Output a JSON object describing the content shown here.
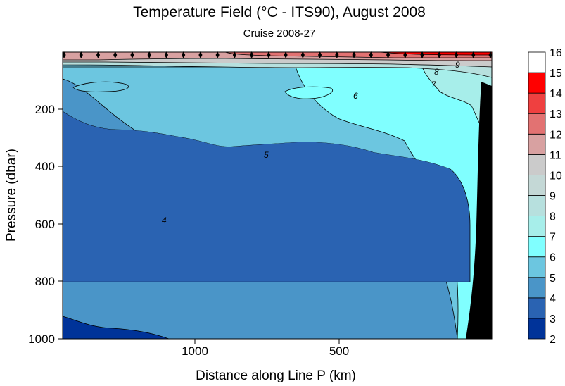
{
  "chart_data": {
    "type": "contour",
    "title": "Temperature Field  (°C - ITS90),  August 2008",
    "subtitle": "Cruise 2008-27",
    "xlabel": "Distance along Line P  (km)",
    "ylabel": "Pressure  (dbar)",
    "x_axis": {
      "reversed": true,
      "range": [
        1445,
        0
      ],
      "ticks": [
        1000,
        500
      ]
    },
    "y_axis": {
      "reversed": true,
      "range": [
        0,
        1000
      ],
      "ticks": [
        200,
        400,
        600,
        800,
        1000
      ]
    },
    "x_tick_labels": [
      "1000",
      "500"
    ],
    "y_tick_labels": [
      "200",
      "400",
      "600",
      "800",
      "1000"
    ],
    "contour_labels": [
      "4",
      "5",
      "6",
      "7",
      "8",
      "9"
    ],
    "colorbar": {
      "levels": [
        2,
        3,
        4,
        5,
        6,
        7,
        8,
        9,
        10,
        11,
        12,
        13,
        14,
        15,
        16
      ],
      "labels": [
        "2",
        "3",
        "4",
        "5",
        "6",
        "7",
        "8",
        "9",
        "10",
        "11",
        "12",
        "13",
        "14",
        "15",
        "16"
      ],
      "colors": [
        "#003399",
        "#2a63b2",
        "#4a95c8",
        "#6cc6e0",
        "#80ffff",
        "#a7eeea",
        "#b7e0de",
        "#c4d8d6",
        "#cbcbcb",
        "#d8a1a1",
        "#e27272",
        "#ef4040",
        "#ff0000",
        "#ffffff"
      ]
    },
    "fill_colors": {
      "t2_3": "#003399",
      "t3_4": "#2a63b2",
      "t4_5": "#4a95c8",
      "t5_6": "#6cc6e0",
      "t6_7": "#80ffff",
      "t7_8": "#a7eeea",
      "t8_9": "#b7e0de",
      "t9_12": "#cbcbcb",
      "t12_13": "#d8a1a1",
      "t13_14": "#e27272",
      "t14_15": "#ef4040",
      "t15_16": "#ff0000",
      "bathymetry": "#000000"
    },
    "station_count": 26
  }
}
